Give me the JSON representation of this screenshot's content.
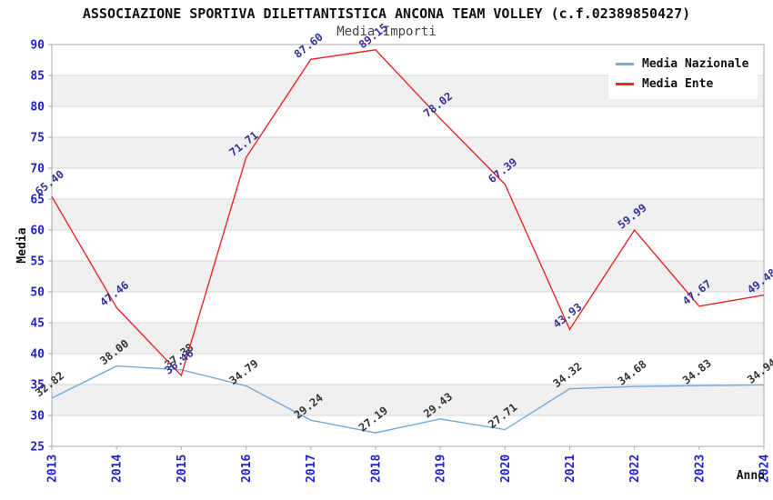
{
  "chart_data": {
    "type": "line",
    "title": "ASSOCIAZIONE SPORTIVA DILETTANTISTICA ANCONA TEAM VOLLEY (c.f.02389850427)",
    "subtitle": "Media Importi",
    "xlabel": "Anno",
    "ylabel": "Media",
    "categories": [
      "2013",
      "2014",
      "2015",
      "2016",
      "2017",
      "2018",
      "2019",
      "2020",
      "2021",
      "2022",
      "2023",
      "2024"
    ],
    "series": [
      {
        "name": "Media Nazionale",
        "color": "#74aadd",
        "label_color": "#333333",
        "values": [
          32.82,
          38.0,
          37.38,
          34.79,
          29.24,
          27.19,
          29.43,
          27.71,
          34.32,
          34.68,
          34.83,
          34.94
        ]
      },
      {
        "name": "Media Ente",
        "color": "#e62929",
        "label_color": "#333399",
        "values": [
          65.4,
          47.46,
          36.46,
          71.71,
          87.6,
          89.15,
          78.02,
          67.39,
          43.93,
          59.99,
          47.67,
          49.48
        ]
      }
    ],
    "ylim": [
      25,
      90
    ],
    "ytick_step": 5,
    "grid": true,
    "legend_position": "top-right",
    "colors": {
      "tick_label": "#2222cc",
      "axis_title": "#111111",
      "band": "#f0f0f0",
      "gridline": "#d9d9d9",
      "border": "#aaaaaa"
    }
  }
}
